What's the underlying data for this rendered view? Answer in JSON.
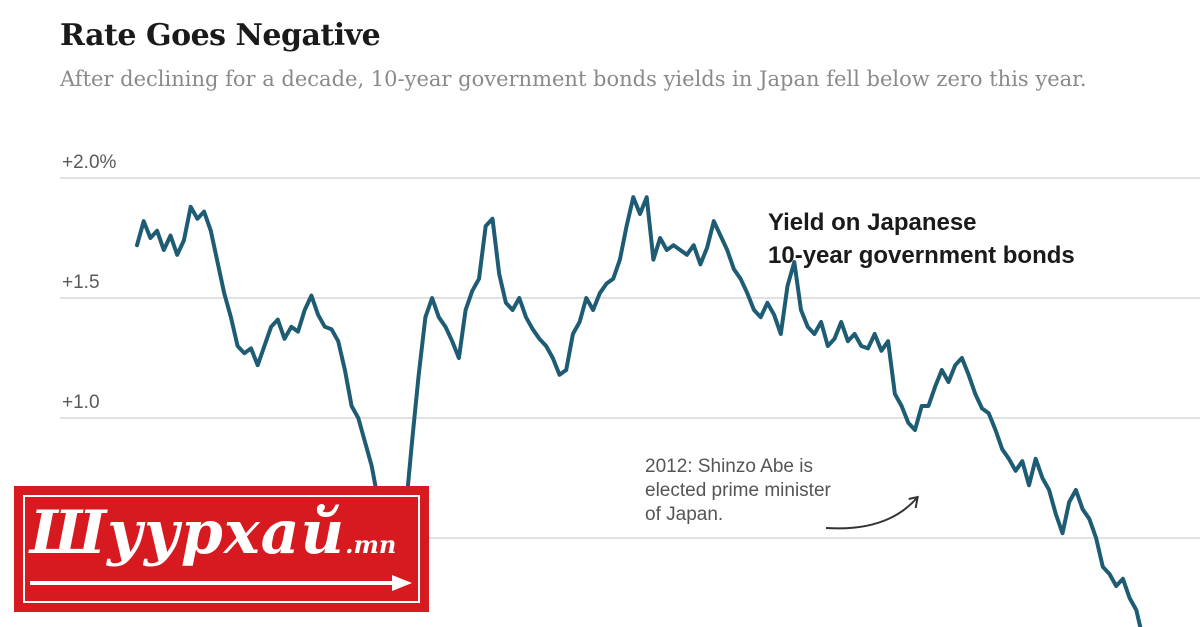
{
  "header": {
    "title": "Rate Goes Negative",
    "subtitle": "After declining for a decade, 10-year government bonds yields in Japan fell below zero this year."
  },
  "chart_data": {
    "type": "line",
    "title": "Rate Goes Negative",
    "subtitle": "After declining for a decade, 10-year government bonds yields in Japan fell below zero this year.",
    "xlabel": "",
    "ylabel": "",
    "ylim": [
      0.0,
      2.0
    ],
    "grid": true,
    "y_ticks": [
      {
        "value": 2.0,
        "label": "+2.0%"
      },
      {
        "value": 1.5,
        "label": "+1.5"
      },
      {
        "value": 1.0,
        "label": "+1.0"
      },
      {
        "value": 0.5,
        "label": ""
      }
    ],
    "series": [
      {
        "name": "Yield on Japanese 10-year government bonds",
        "name_lines": [
          "Yield on Japanese",
          "10-year government bonds"
        ],
        "color": "#1d5c73",
        "x": [
          2006.0,
          2006.05,
          2006.1,
          2006.15,
          2006.2,
          2006.25,
          2006.3,
          2006.35,
          2006.4,
          2006.45,
          2006.5,
          2006.55,
          2006.6,
          2006.65,
          2006.7,
          2006.75,
          2006.8,
          2006.85,
          2006.9,
          2006.95,
          2007.0,
          2007.05,
          2007.1,
          2007.15,
          2007.2,
          2007.25,
          2007.3,
          2007.35,
          2007.4,
          2007.45,
          2007.5,
          2007.55,
          2007.6,
          2007.65,
          2007.7,
          2007.75,
          2007.8,
          2007.85,
          2007.9,
          2007.95,
          2008.0,
          2008.05,
          2008.1,
          2008.15,
          2008.2,
          2008.25,
          2008.3,
          2008.35,
          2008.4,
          2008.45,
          2008.5,
          2008.55,
          2008.6,
          2008.65,
          2008.7,
          2008.75,
          2008.8,
          2008.85,
          2008.9,
          2008.95,
          2009.0,
          2009.05,
          2009.1,
          2009.15,
          2009.2,
          2009.25,
          2009.3,
          2009.35,
          2009.4,
          2009.45,
          2009.5,
          2009.55,
          2009.6,
          2009.65,
          2009.7,
          2009.75,
          2009.8,
          2009.85,
          2009.9,
          2009.95,
          2010.0,
          2010.05,
          2010.1,
          2010.15,
          2010.2,
          2010.25,
          2010.3,
          2010.35,
          2010.4,
          2010.45,
          2010.5,
          2010.55,
          2010.6,
          2010.65,
          2010.7,
          2010.75,
          2010.8,
          2010.85,
          2010.9,
          2010.95,
          2011.0,
          2011.05,
          2011.1,
          2011.15,
          2011.2,
          2011.25,
          2011.3,
          2011.35,
          2011.4,
          2011.45,
          2011.5,
          2011.55,
          2011.6,
          2011.65,
          2011.7,
          2011.75,
          2011.8,
          2011.85,
          2011.9,
          2011.95,
          2012.0,
          2012.05,
          2012.1,
          2012.15,
          2012.2,
          2012.25,
          2012.3,
          2012.35,
          2012.4,
          2012.45,
          2012.5,
          2012.55,
          2012.6,
          2012.65,
          2012.7,
          2012.75,
          2012.8,
          2012.85,
          2012.9,
          2012.95,
          2013.0,
          2013.05,
          2013.1,
          2013.15,
          2013.2,
          2013.25,
          2013.3,
          2013.35,
          2013.4,
          2013.45,
          2013.5
        ],
        "values": [
          1.72,
          1.82,
          1.75,
          1.78,
          1.7,
          1.76,
          1.68,
          1.74,
          1.88,
          1.83,
          1.86,
          1.78,
          1.65,
          1.52,
          1.42,
          1.3,
          1.27,
          1.29,
          1.22,
          1.3,
          1.38,
          1.41,
          1.33,
          1.38,
          1.36,
          1.45,
          1.51,
          1.43,
          1.38,
          1.37,
          1.32,
          1.2,
          1.05,
          1.0,
          0.9,
          0.8,
          0.65,
          0.55,
          0.47,
          0.47,
          0.6,
          0.9,
          1.18,
          1.42,
          1.5,
          1.42,
          1.38,
          1.32,
          1.25,
          1.45,
          1.53,
          1.58,
          1.8,
          1.83,
          1.6,
          1.48,
          1.45,
          1.5,
          1.42,
          1.37,
          1.33,
          1.3,
          1.25,
          1.18,
          1.2,
          1.35,
          1.4,
          1.5,
          1.45,
          1.52,
          1.56,
          1.58,
          1.66,
          1.8,
          1.92,
          1.85,
          1.92,
          1.66,
          1.75,
          1.7,
          1.72,
          1.7,
          1.68,
          1.72,
          1.64,
          1.71,
          1.82,
          1.76,
          1.7,
          1.62,
          1.58,
          1.52,
          1.45,
          1.42,
          1.48,
          1.43,
          1.35,
          1.55,
          1.65,
          1.45,
          1.38,
          1.35,
          1.4,
          1.3,
          1.33,
          1.4,
          1.32,
          1.35,
          1.3,
          1.29,
          1.35,
          1.28,
          1.32,
          1.1,
          1.05,
          0.98,
          0.95,
          1.05,
          1.05,
          1.13,
          1.2,
          1.15,
          1.22,
          1.25,
          1.18,
          1.1,
          1.04,
          1.02,
          0.95,
          0.87,
          0.83,
          0.78,
          0.82,
          0.72,
          0.83,
          0.75,
          0.7,
          0.6,
          0.52,
          0.65,
          0.7,
          0.62,
          0.58,
          0.5,
          0.38,
          0.35,
          0.3,
          0.33,
          0.25,
          0.2,
          0.08
        ]
      }
    ],
    "annotations": [
      {
        "lines": [
          "2012: Shinzo Abe is",
          "elected prime minister",
          "of Japan."
        ],
        "points_to_x": 2011.82
      }
    ],
    "legend": "none"
  },
  "watermark": {
    "brand": "Шуурхай",
    "suffix": ".mn",
    "color": "#d71920"
  }
}
